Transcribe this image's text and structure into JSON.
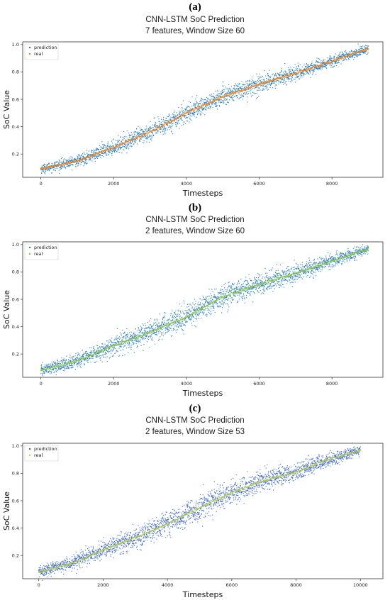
{
  "chart_data": [
    {
      "panel_label": "(a)",
      "type": "scatter",
      "title": "CNN-LSTM SoC Prediction",
      "subtitle": "7 features, Window Size 60",
      "xlabel": "Timesteps",
      "ylabel": "SoC Value",
      "xlim": [
        -500,
        9400
      ],
      "ylim": [
        0.03,
        1.02
      ],
      "xticks": [
        0,
        2000,
        4000,
        6000,
        8000
      ],
      "yticks": [
        0.2,
        0.4,
        0.6,
        0.8,
        1.0
      ],
      "ytick_labels": [
        "0.2",
        "0.4",
        "0.6",
        "0.8",
        "1.0"
      ],
      "legend_position": "top-left",
      "grid": false,
      "series": [
        {
          "name": "prediction",
          "color": "#1f77b4",
          "noise": 0.035,
          "x": [
            0,
            1000,
            2000,
            3000,
            4000,
            5000,
            6000,
            7000,
            8000,
            9000
          ],
          "y": [
            0.09,
            0.15,
            0.25,
            0.36,
            0.5,
            0.62,
            0.71,
            0.79,
            0.88,
            0.97
          ]
        },
        {
          "name": "real",
          "color": "#ff7f0e",
          "x": [
            0,
            1000,
            2000,
            3000,
            4000,
            5000,
            6000,
            7000,
            8000,
            9000
          ],
          "y": [
            0.09,
            0.15,
            0.25,
            0.36,
            0.5,
            0.62,
            0.71,
            0.79,
            0.88,
            0.97
          ]
        }
      ]
    },
    {
      "panel_label": "(b)",
      "type": "scatter",
      "title": "CNN-LSTM SoC Prediction",
      "subtitle": "2 features, Window Size 60",
      "xlabel": "Timesteps",
      "ylabel": "SoC Value",
      "xlim": [
        -500,
        9400
      ],
      "ylim": [
        0.03,
        1.02
      ],
      "xticks": [
        0,
        2000,
        4000,
        6000,
        8000
      ],
      "yticks": [
        0.2,
        0.4,
        0.6,
        0.8,
        1.0
      ],
      "ytick_labels": [
        "0.2",
        "0.4",
        "0.6",
        "0.8",
        "1.0"
      ],
      "legend_position": "top-left",
      "grid": false,
      "series": [
        {
          "name": "prediction",
          "color": "#1f77b4",
          "noise": 0.045,
          "x": [
            0,
            1000,
            2000,
            3000,
            4000,
            5000,
            6000,
            7000,
            8000,
            9000
          ],
          "y": [
            0.08,
            0.15,
            0.26,
            0.36,
            0.47,
            0.62,
            0.71,
            0.79,
            0.88,
            0.97
          ]
        },
        {
          "name": "real",
          "color": "#8cc63f",
          "x": [
            0,
            1000,
            2000,
            3000,
            4000,
            5000,
            6000,
            7000,
            8000,
            9000
          ],
          "y": [
            0.08,
            0.15,
            0.26,
            0.36,
            0.47,
            0.62,
            0.71,
            0.79,
            0.88,
            0.97
          ]
        }
      ]
    },
    {
      "panel_label": "(c)",
      "type": "scatter",
      "title": "CNN-LSTM SoC Prediction",
      "subtitle": "2 features, Window Size 53",
      "xlabel": "Timesteps",
      "ylabel": "SoC Value",
      "xlim": [
        -500,
        10700
      ],
      "ylim": [
        0.03,
        1.02
      ],
      "xticks": [
        0,
        2000,
        4000,
        6000,
        8000,
        10000
      ],
      "yticks": [
        0.2,
        0.4,
        0.6,
        0.8,
        1.0
      ],
      "ytick_labels": [
        "0.2",
        "0.4",
        "0.6",
        "0.8",
        "1.0"
      ],
      "legend_position": "top-left",
      "grid": false,
      "series": [
        {
          "name": "prediction",
          "color": "#2f5fc4",
          "noise": 0.045,
          "x": [
            0,
            1000,
            2000,
            3000,
            4000,
            5000,
            6000,
            7000,
            8000,
            9000,
            10000
          ],
          "y": [
            0.08,
            0.14,
            0.24,
            0.33,
            0.43,
            0.55,
            0.66,
            0.75,
            0.81,
            0.9,
            0.97
          ]
        },
        {
          "name": "real",
          "color": "#b8c94a",
          "x": [
            0,
            1000,
            2000,
            3000,
            4000,
            5000,
            6000,
            7000,
            8000,
            9000,
            10000
          ],
          "y": [
            0.08,
            0.14,
            0.24,
            0.33,
            0.43,
            0.55,
            0.66,
            0.75,
            0.81,
            0.9,
            0.97
          ]
        }
      ]
    }
  ]
}
